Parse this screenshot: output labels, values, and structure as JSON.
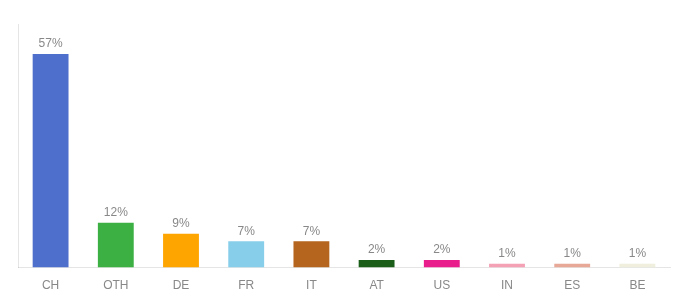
{
  "chart_data": {
    "type": "bar",
    "categories": [
      "CH",
      "OTH",
      "DE",
      "FR",
      "IT",
      "AT",
      "US",
      "IN",
      "ES",
      "BE"
    ],
    "values": [
      57,
      12,
      9,
      7,
      7,
      2,
      2,
      1,
      1,
      1
    ],
    "value_labels": [
      "57%",
      "12%",
      "9%",
      "7%",
      "7%",
      "2%",
      "2%",
      "1%",
      "1%",
      "1%"
    ],
    "colors": [
      "#4f6fcc",
      "#3cb043",
      "#ffa500",
      "#87ceeb",
      "#b5651d",
      "#1a5e1a",
      "#e91e8c",
      "#f4a0b5",
      "#e8a898",
      "#f0eedc"
    ],
    "ylim": [
      0,
      65
    ],
    "grid": false,
    "data_labels": true,
    "tick_labels": "x"
  }
}
